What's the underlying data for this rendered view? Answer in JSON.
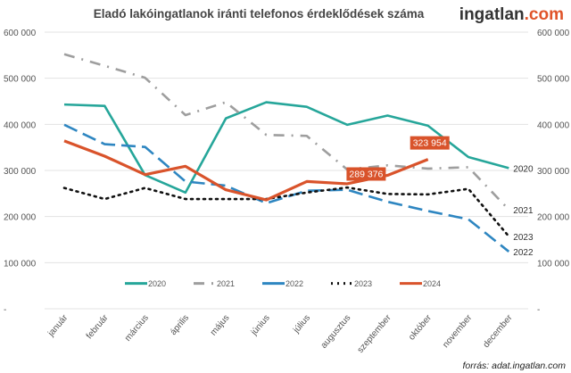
{
  "title": "Eladó lakóingatlanok iránti telefonos érdeklődések száma",
  "logo": {
    "text": "ingatlan",
    "suffix": ".com"
  },
  "source": "forrás: adat.ingatlan.com",
  "chart_data": {
    "type": "line",
    "title": "Eladó lakóingatlanok iránti telefonos érdeklődések száma",
    "categories": [
      "január",
      "február",
      "március",
      "április",
      "május",
      "június",
      "július",
      "augusztus",
      "szeptember",
      "október",
      "november",
      "december"
    ],
    "ylim": [
      0,
      600000
    ],
    "yticks": [
      0,
      100000,
      200000,
      300000,
      400000,
      500000,
      600000
    ],
    "ytick_labels": [
      "-",
      "100 000",
      "200 000",
      "300 000",
      "400 000",
      "500 000",
      "600 000"
    ],
    "secondary_axis": true,
    "grid": true,
    "legend": "bottom",
    "series": [
      {
        "name": "2020",
        "color": "#26a69a",
        "dash": "solid",
        "values": [
          443000,
          440000,
          290000,
          252000,
          413000,
          448000,
          438000,
          399000,
          419000,
          397000,
          329000,
          305000
        ]
      },
      {
        "name": "2021",
        "color": "#9e9e9e",
        "dash": "dashdot",
        "values": [
          552000,
          527000,
          501000,
          420000,
          448000,
          377000,
          375000,
          302000,
          311000,
          304000,
          307000,
          215000
        ]
      },
      {
        "name": "2022",
        "color": "#2e86c1",
        "dash": "dash",
        "values": [
          399000,
          357000,
          351000,
          276000,
          267000,
          229000,
          256000,
          258000,
          232000,
          212000,
          194000,
          124000
        ]
      },
      {
        "name": "2023",
        "color": "#111111",
        "dash": "dot",
        "values": [
          262000,
          238000,
          262000,
          238000,
          238000,
          238000,
          252000,
          263000,
          249000,
          248000,
          260000,
          157000
        ]
      },
      {
        "name": "2024",
        "color": "#d9532b",
        "dash": "solid",
        "values": [
          364000,
          331000,
          291000,
          309000,
          258000,
          236000,
          276000,
          271000,
          289376,
          323954,
          null,
          null
        ]
      }
    ],
    "data_labels": [
      {
        "series": "2024",
        "category": "szeptember",
        "text": "289 376"
      },
      {
        "series": "2024",
        "category": "október",
        "text": "323 954"
      }
    ]
  }
}
